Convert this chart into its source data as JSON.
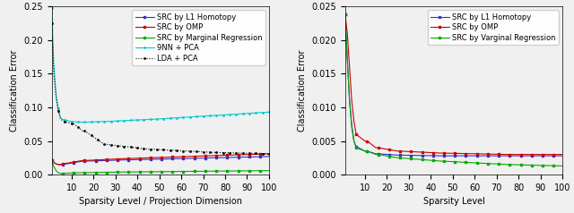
{
  "left": {
    "title": "",
    "xlabel": "Sparsity Level / Projection Dimension",
    "ylabel": "Classification Error",
    "xlim": [
      1,
      100
    ],
    "ylim": [
      0,
      0.25
    ],
    "yticks": [
      0,
      0.05,
      0.1,
      0.15,
      0.2,
      0.25
    ],
    "xticks": [
      10,
      20,
      30,
      40,
      50,
      60,
      70,
      80,
      90,
      100
    ],
    "legend": [
      "SRC by L1 Homotopy",
      "SRC by OMP",
      "SRC by Marginal Regression",
      "9NN + PCA",
      "LDA + PCA"
    ],
    "line_colors": [
      "#3333cc",
      "#cc0000",
      "#00aa00",
      "#00cccc",
      "#000000"
    ],
    "line_styles": [
      "-",
      "-",
      "-",
      "-",
      ":"
    ],
    "markers": [
      "s",
      "s",
      "s",
      ".",
      "."
    ],
    "marker_sizes": [
      2,
      2,
      2,
      3,
      3
    ]
  },
  "right": {
    "title": "",
    "xlabel": "Sparsity Level",
    "ylabel": "Classification Error",
    "xlim": [
      1,
      100
    ],
    "ylim": [
      0,
      0.025
    ],
    "yticks": [
      0,
      0.005,
      0.01,
      0.015,
      0.02,
      0.025
    ],
    "xticks": [
      10,
      20,
      30,
      40,
      50,
      60,
      70,
      80,
      90,
      100
    ],
    "legend": [
      "SRC by L1 Homotopy",
      "SRC by OMP",
      "SRC by Varginal Regression"
    ],
    "line_colors": [
      "#3333cc",
      "#cc0000",
      "#00aa00"
    ],
    "line_styles": [
      "-",
      "-",
      "-"
    ],
    "markers": [
      "s",
      "s",
      "s"
    ],
    "marker_sizes": [
      2,
      2,
      2
    ]
  },
  "background_color": "#f0f0f0",
  "font_size": 7
}
